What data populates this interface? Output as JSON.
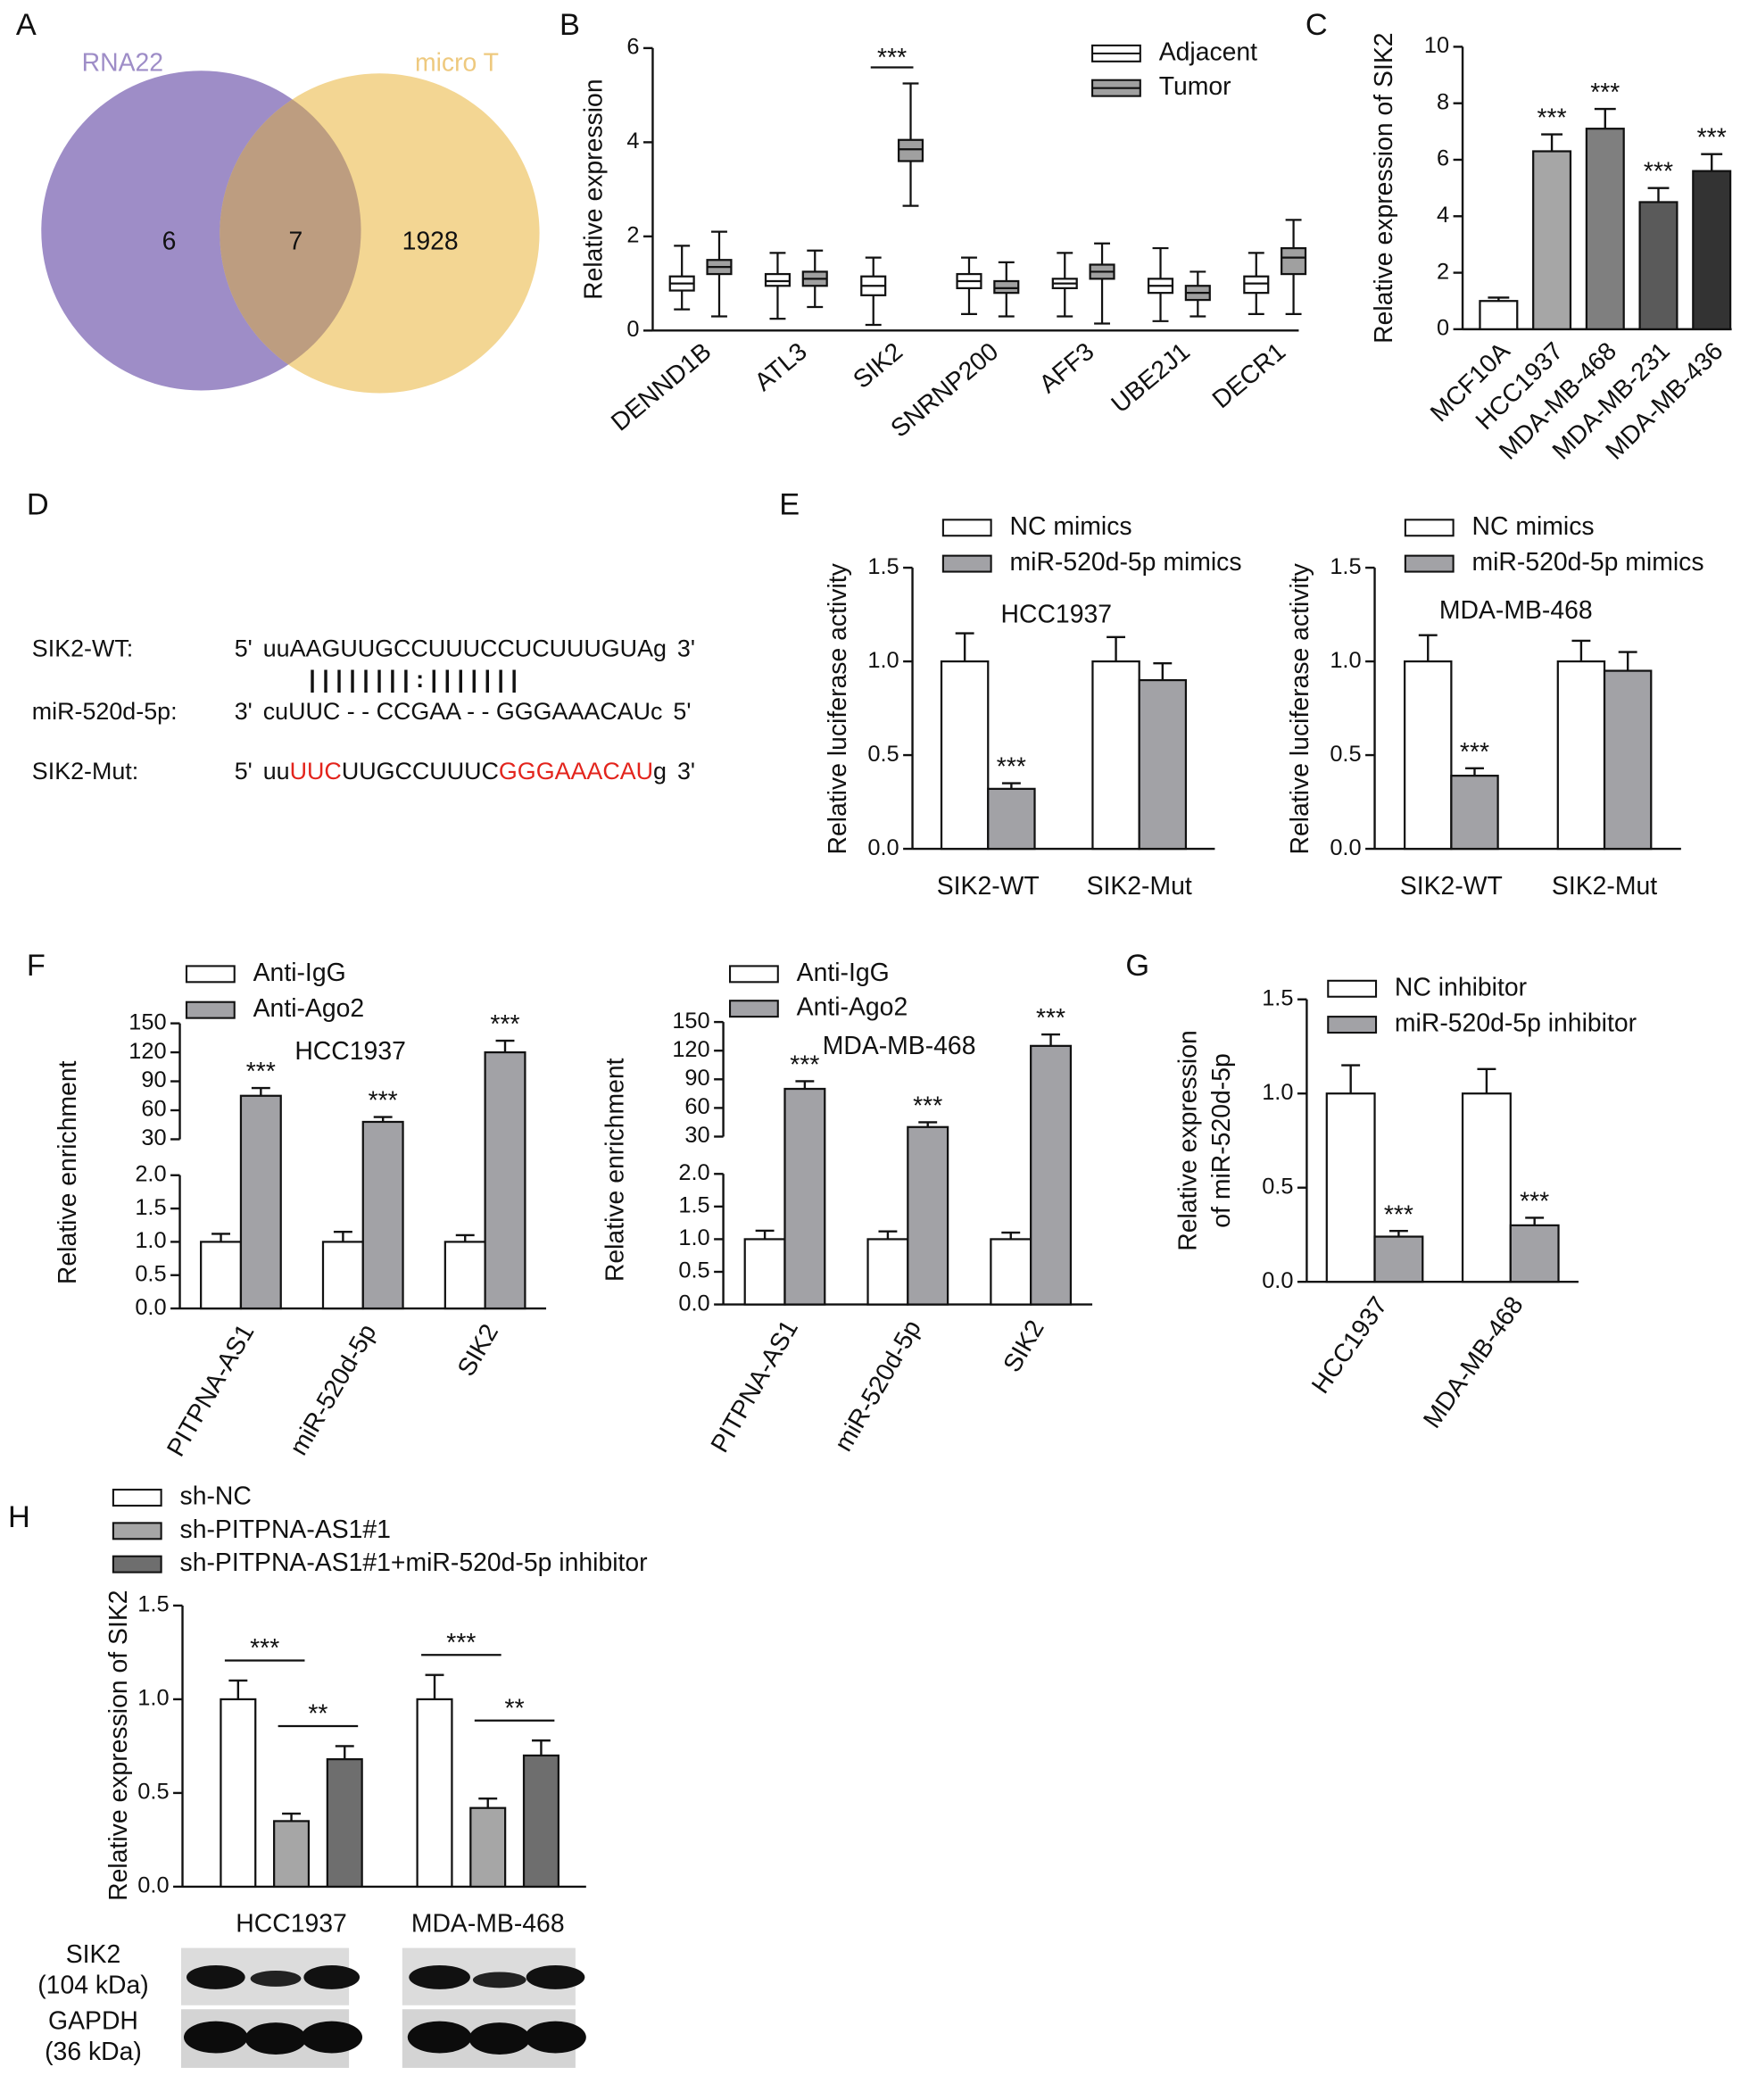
{
  "panel_labels": [
    "A",
    "B",
    "C",
    "D",
    "E",
    "F",
    "G",
    "H"
  ],
  "sequence_alignment": {
    "rows": [
      {
        "label": "SIK2-WT:",
        "end5": "5'",
        "segments": [
          {
            "text": "uuAAGUUGCCUUUCCUCUUUGUAg",
            "highlight": false
          }
        ],
        "end3": "3'"
      },
      {
        "label": "miR-520d-5p:",
        "end5": "3'",
        "segments": [
          {
            "text": "cuUUC - - CCGAA - - GGGAAACAUc",
            "highlight": false
          }
        ],
        "end3": "5'"
      },
      {
        "label": "SIK2-Mut:",
        "end5": "5'",
        "segments": [
          {
            "text": "uu",
            "highlight": false
          },
          {
            "text": "UUC",
            "highlight": true
          },
          {
            "text": "UUGCCUUUC",
            "highlight": false
          },
          {
            "text": "GGGAAACAU",
            "highlight": true
          },
          {
            "text": "g",
            "highlight": false
          }
        ],
        "end3": "3'"
      }
    ],
    "pairing": "| | |    |    | | |    | : | | | | | | |",
    "highlight_color": "#e3241c"
  },
  "western_blot": {
    "rows": [
      [
        "SIK2",
        "(104 kDa)"
      ],
      [
        "GAPDH",
        "(36 kDa)"
      ]
    ]
  },
  "chart_data": [
    {
      "type": "venn",
      "sets": [
        {
          "name": "RNA22",
          "color": "#9e8dc7"
        },
        {
          "name": "micro T",
          "color": "#f3d693"
        }
      ],
      "values": [
        6,
        7,
        1928
      ],
      "overlap_color": "#bd9d80"
    },
    {
      "type": "box",
      "ylabel": "Relative expression",
      "categories": [
        "DENND1B",
        "ATL3",
        "SIK2",
        "SNRNP200",
        "AFF3",
        "UBE2J1",
        "DECR1"
      ],
      "series": [
        {
          "name": "Adjacent",
          "color": "#ffffff",
          "values": [
            [
              0.45,
              0.85,
              1.0,
              1.15,
              1.8
            ],
            [
              0.25,
              0.95,
              1.05,
              1.2,
              1.65
            ],
            [
              0.12,
              0.75,
              0.95,
              1.15,
              1.55
            ],
            [
              0.35,
              0.9,
              1.05,
              1.2,
              1.55
            ],
            [
              0.3,
              0.9,
              1.0,
              1.1,
              1.65
            ],
            [
              0.2,
              0.8,
              0.95,
              1.1,
              1.75
            ],
            [
              0.35,
              0.8,
              1.0,
              1.15,
              1.65
            ]
          ]
        },
        {
          "name": "Tumor",
          "color": "#a0a0a0",
          "values": [
            [
              0.3,
              1.2,
              1.35,
              1.5,
              2.1
            ],
            [
              0.5,
              0.95,
              1.1,
              1.25,
              1.7
            ],
            [
              2.65,
              3.6,
              3.85,
              4.05,
              5.25
            ],
            [
              0.3,
              0.8,
              0.9,
              1.05,
              1.45
            ],
            [
              0.15,
              1.1,
              1.25,
              1.4,
              1.85
            ],
            [
              0.3,
              0.65,
              0.8,
              0.95,
              1.25
            ],
            [
              0.35,
              1.2,
              1.55,
              1.75,
              2.35
            ]
          ]
        }
      ],
      "significance": [
        null,
        null,
        "***",
        null,
        null,
        null,
        null
      ],
      "ylim": [
        0,
        6
      ],
      "yticks": [
        0,
        2,
        4,
        6
      ]
    },
    {
      "type": "bar",
      "ylabel": "Relative expression of SIK2",
      "categories": [
        "MCF10A",
        "HCC1937",
        "MDA-MB-468",
        "MDA-MB-231",
        "MDA-MB-436"
      ],
      "values": [
        1.0,
        6.3,
        7.1,
        4.5,
        5.6
      ],
      "errors": [
        0.12,
        0.6,
        0.7,
        0.5,
        0.6
      ],
      "colors": [
        "#ffffff",
        "#a6a6a6",
        "#7f7f7f",
        "#5a5a5a",
        "#333333"
      ],
      "value_annotations": [
        null,
        "***",
        "***",
        "***",
        "***"
      ],
      "ylim": [
        0,
        10
      ],
      "yticks": [
        0,
        2,
        4,
        6,
        8,
        10
      ]
    },
    {
      "type": "grouped_bar",
      "title": "HCC1937",
      "ylabel": "Relative luciferase activity",
      "categories": [
        "SIK2-WT",
        "SIK2-Mut"
      ],
      "series": [
        {
          "name": "NC mimics",
          "color": "#ffffff",
          "values": [
            1.0,
            1.0
          ],
          "errors": [
            0.15,
            0.13
          ],
          "value_annotations": [
            null,
            null
          ]
        },
        {
          "name": "miR-520d-5p mimics",
          "color": "#a2a2a6",
          "values": [
            0.32,
            0.9
          ],
          "errors": [
            0.03,
            0.09
          ],
          "value_annotations": [
            "***",
            null
          ]
        }
      ],
      "ylim": [
        0,
        1.5
      ],
      "yticks": [
        {
          "value": 0,
          "label": "0.0"
        },
        {
          "value": 0.5,
          "label": "0.5"
        },
        {
          "value": 1,
          "label": "1.0"
        },
        {
          "value": 1.5,
          "label": "1.5"
        }
      ]
    },
    {
      "type": "grouped_bar",
      "title": "MDA-MB-468",
      "ylabel": "Relative luciferase activity",
      "categories": [
        "SIK2-WT",
        "SIK2-Mut"
      ],
      "series": [
        {
          "name": "NC mimics",
          "color": "#ffffff",
          "values": [
            1.0,
            1.0
          ],
          "errors": [
            0.14,
            0.11
          ],
          "value_annotations": [
            null,
            null
          ]
        },
        {
          "name": "miR-520d-5p mimics",
          "color": "#a2a2a6",
          "values": [
            0.39,
            0.95
          ],
          "errors": [
            0.04,
            0.1
          ],
          "value_annotations": [
            "***",
            null
          ]
        }
      ],
      "ylim": [
        0,
        1.5
      ],
      "yticks": [
        {
          "value": 0,
          "label": "0.0"
        },
        {
          "value": 0.5,
          "label": "0.5"
        },
        {
          "value": 1,
          "label": "1.0"
        },
        {
          "value": 1.5,
          "label": "1.5"
        }
      ]
    },
    {
      "type": "broken_bar",
      "title": "HCC1937",
      "ylabel": "Relative enrichment",
      "categories": [
        "PITPNA-AS1",
        "miR-520d-5p",
        "SIK2"
      ],
      "series": [
        {
          "name": "Anti-IgG",
          "color": "#ffffff",
          "values": [
            1.0,
            1.0,
            1.0
          ],
          "errors": [
            0.12,
            0.15,
            0.1
          ],
          "value_annotations": [
            null,
            null,
            null
          ]
        },
        {
          "name": "Anti-Ago2",
          "color": "#a2a2a6",
          "values": [
            75,
            48,
            120
          ],
          "errors": [
            8,
            5,
            12
          ],
          "value_annotations": [
            "***",
            "***",
            "***"
          ]
        }
      ],
      "ylim": [
        0,
        2
      ],
      "yticks": [
        {
          "value": 0,
          "label": "0.0"
        },
        {
          "value": 0.5,
          "label": "0.5"
        },
        {
          "value": 1,
          "label": "1.0"
        },
        {
          "value": 1.5,
          "label": "1.5"
        },
        {
          "value": 2,
          "label": "2.0"
        }
      ],
      "ylim_upper": [
        30,
        150
      ],
      "yticks_upper": [
        30,
        60,
        90,
        120,
        150
      ]
    },
    {
      "type": "broken_bar",
      "title": "MDA-MB-468",
      "ylabel": "Relative enrichment",
      "categories": [
        "PITPNA-AS1",
        "miR-520d-5p",
        "SIK2"
      ],
      "series": [
        {
          "name": "Anti-IgG",
          "color": "#ffffff",
          "values": [
            1.0,
            1.0,
            1.0
          ],
          "errors": [
            0.13,
            0.12,
            0.1
          ],
          "value_annotations": [
            null,
            null,
            null
          ]
        },
        {
          "name": "Anti-Ago2",
          "color": "#a2a2a6",
          "values": [
            80,
            40,
            125
          ],
          "errors": [
            8,
            5,
            12
          ],
          "value_annotations": [
            "***",
            "***",
            "***"
          ]
        }
      ],
      "ylim": [
        0,
        2
      ],
      "yticks": [
        {
          "value": 0,
          "label": "0.0"
        },
        {
          "value": 0.5,
          "label": "0.5"
        },
        {
          "value": 1,
          "label": "1.0"
        },
        {
          "value": 1.5,
          "label": "1.5"
        },
        {
          "value": 2,
          "label": "2.0"
        }
      ],
      "ylim_upper": [
        30,
        150
      ],
      "yticks_upper": [
        30,
        60,
        90,
        120,
        150
      ]
    },
    {
      "type": "grouped_bar",
      "ylabel": [
        "Relative expression",
        "of miR-520d-5p"
      ],
      "categories": [
        "HCC1937",
        "MDA-MB-468"
      ],
      "series": [
        {
          "name": "NC inhibitor",
          "color": "#ffffff",
          "values": [
            1.0,
            1.0
          ],
          "errors": [
            0.15,
            0.13
          ],
          "value_annotations": [
            null,
            null
          ]
        },
        {
          "name": "miR-520d-5p inhibitor",
          "color": "#a2a2a6",
          "values": [
            0.24,
            0.3
          ],
          "errors": [
            0.03,
            0.04
          ],
          "value_annotations": [
            "***",
            "***"
          ]
        }
      ],
      "ylim": [
        0,
        1.5
      ],
      "yticks": [
        {
          "value": 0,
          "label": "0.0"
        },
        {
          "value": 0.5,
          "label": "0.5"
        },
        {
          "value": 1,
          "label": "1.0"
        },
        {
          "value": 1.5,
          "label": "1.5"
        }
      ]
    },
    {
      "type": "grouped_bar",
      "ylabel": "Relative expression of SIK2",
      "categories": [
        "HCC1937",
        "MDA-MB-468"
      ],
      "series": [
        {
          "name": "sh-NC",
          "color": "#ffffff",
          "values": [
            1.0,
            1.0
          ],
          "errors": [
            0.1,
            0.13
          ]
        },
        {
          "name": "sh-PITPNA-AS1#1",
          "color": "#a6a6a6",
          "values": [
            0.35,
            0.42
          ],
          "errors": [
            0.04,
            0.05
          ]
        },
        {
          "name": "sh-PITPNA-AS1#1+miR-520d-5p inhibitor",
          "color": "#6e6e6e",
          "values": [
            0.68,
            0.7
          ],
          "errors": [
            0.07,
            0.08
          ]
        }
      ],
      "significance": [
        [
          "***",
          "**"
        ],
        [
          "***",
          "**"
        ]
      ],
      "ylim": [
        0,
        1.5
      ],
      "yticks": [
        {
          "value": 0,
          "label": "0.0"
        },
        {
          "value": 0.5,
          "label": "0.5"
        },
        {
          "value": 1,
          "label": "1.0"
        },
        {
          "value": 1.5,
          "label": "1.5"
        }
      ]
    }
  ]
}
